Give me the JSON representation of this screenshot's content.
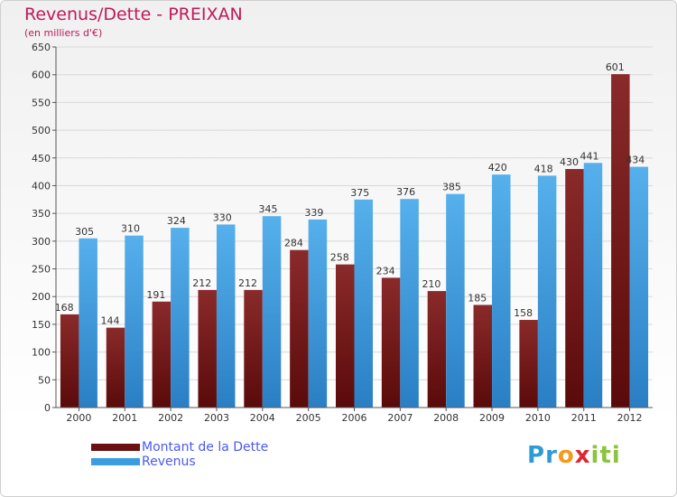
{
  "chart_data": {
    "type": "bar",
    "title": "Revenus/Dette - PREIXAN",
    "subtitle": "(en milliers d'€)",
    "xlabel": "",
    "ylabel": "",
    "ylim": [
      0,
      650
    ],
    "yticks": [
      0,
      50,
      100,
      150,
      200,
      250,
      300,
      350,
      400,
      450,
      500,
      550,
      600,
      650
    ],
    "grid": true,
    "categories": [
      "2000",
      "2001",
      "2002",
      "2003",
      "2004",
      "2005",
      "2006",
      "2007",
      "2008",
      "2009",
      "2010",
      "2011",
      "2012"
    ],
    "series": [
      {
        "name": "Montant de la Dette",
        "color": "#7a1e1e",
        "values": [
          168,
          144,
          191,
          212,
          212,
          284,
          258,
          234,
          210,
          185,
          158,
          430,
          601
        ]
      },
      {
        "name": "Revenus",
        "color": "#3b9de0",
        "values": [
          305,
          310,
          324,
          330,
          345,
          339,
          375,
          376,
          385,
          420,
          418,
          441,
          434
        ]
      }
    ],
    "legend": {
      "placement": "bottom-left"
    }
  },
  "logo": {
    "letters": [
      "P",
      "r",
      "o",
      "x",
      "i",
      "t",
      "i"
    ],
    "colors": [
      "#2e9bd6",
      "#2e9bd6",
      "#f39a1d",
      "#e0262e",
      "#8bc43f",
      "#8bc43f",
      "#8bc43f"
    ]
  }
}
